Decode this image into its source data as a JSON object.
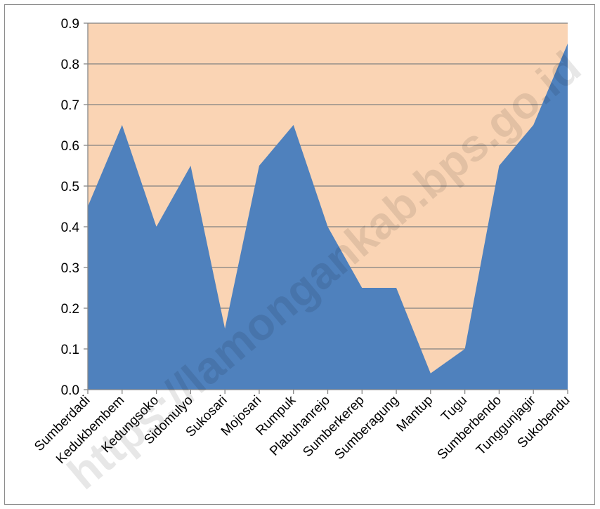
{
  "chart_data": {
    "type": "area",
    "categories": [
      "Sumberdadi",
      "Kedukbembem",
      "Kedungsoko",
      "Sidomulyo",
      "Sukosari",
      "Mojosari",
      "Rumpuk",
      "Plabuhanrejo",
      "Sumberkerep",
      "Sumberagung",
      "Mantup",
      "Tugu",
      "Sumberbendo",
      "Tunggunjagir",
      "Sukobendu"
    ],
    "values": [
      0.45,
      0.65,
      0.4,
      0.55,
      0.15,
      0.55,
      0.65,
      0.4,
      0.25,
      0.25,
      0.04,
      0.1,
      0.55,
      0.65,
      0.85
    ],
    "ylim": [
      0,
      0.9
    ],
    "yticks": [
      "0.0",
      "0.1",
      "0.2",
      "0.3",
      "0.4",
      "0.5",
      "0.6",
      "0.7",
      "0.8",
      "0.9"
    ],
    "title": "",
    "xlabel": "",
    "ylabel": "",
    "grid": true,
    "colors": {
      "plot_background": "#fad4b4",
      "area_fill": "#4f81bd",
      "gridline": "#808080",
      "axis": "#868686"
    },
    "watermark": "https://lamongankab.bps.go.id"
  }
}
